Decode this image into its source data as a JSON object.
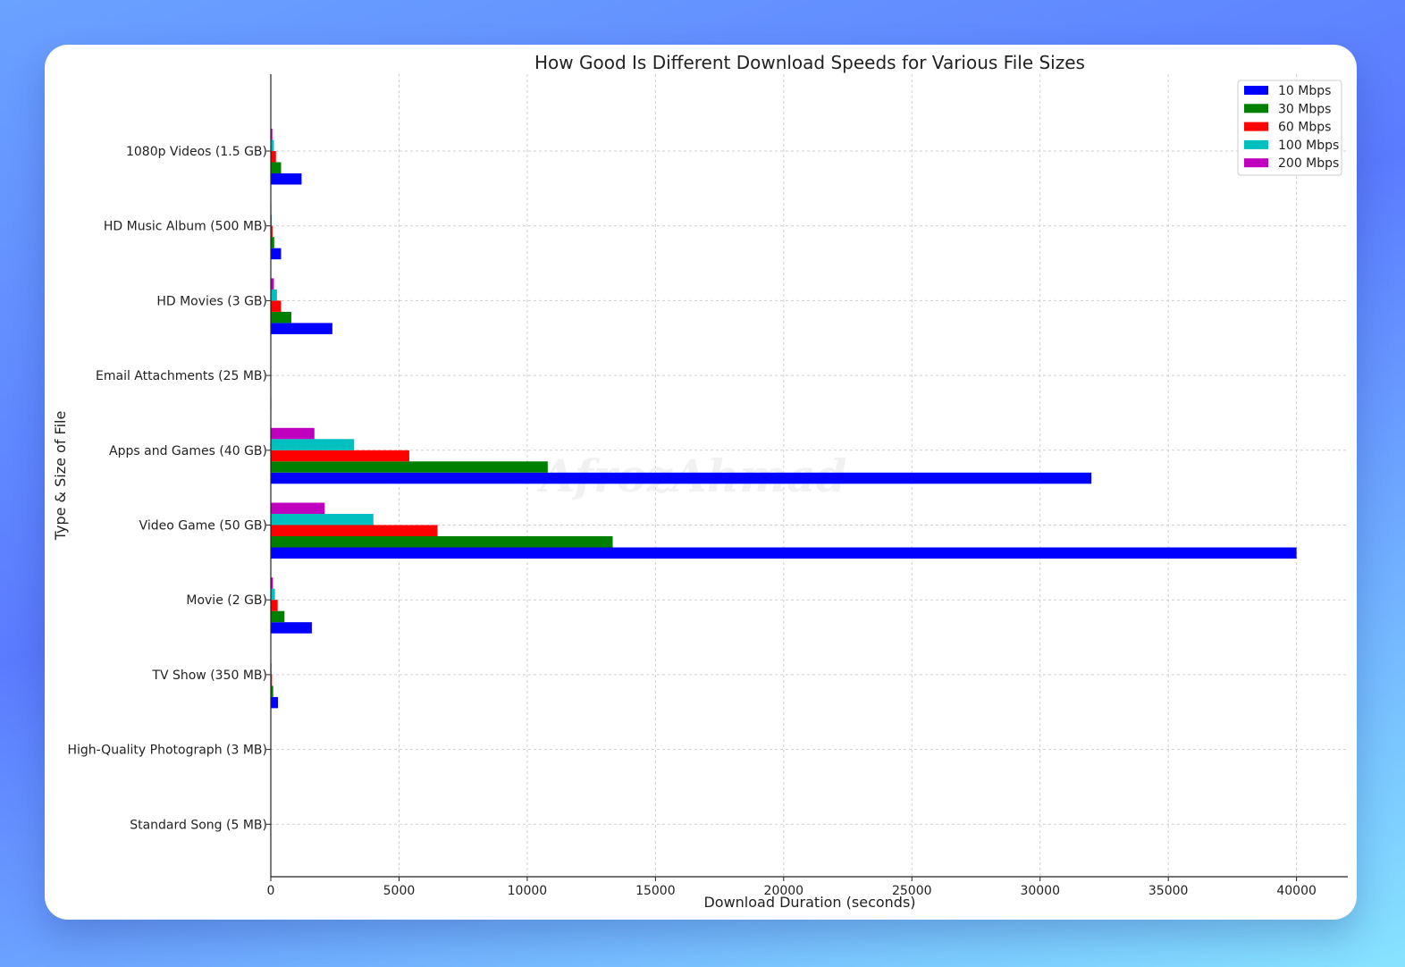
{
  "chart_data": {
    "type": "bar",
    "orientation": "horizontal",
    "title": "How Good Is Different Download Speeds for Various File Sizes",
    "xlabel": "Download Duration (seconds)",
    "ylabel": "Type & Size of File",
    "xlim": [
      0,
      42000
    ],
    "x_ticks": [
      0,
      5000,
      10000,
      15000,
      20000,
      25000,
      30000,
      35000,
      40000
    ],
    "grid": true,
    "legend_position": "top-right",
    "categories": [
      "1080p Videos (1.5 GB)",
      "HD Music Album (500 MB)",
      "HD Movies (3 GB)",
      "Email Attachments (25 MB)",
      "Apps and Games (40 GB)",
      "Video Game (50 GB)",
      "Movie (2 GB)",
      "TV Show (350 MB)",
      "High-Quality Photograph (3 MB)",
      "Standard Song (5 MB)"
    ],
    "series": [
      {
        "name": "10 Mbps",
        "color": "#0000ff",
        "values": [
          1200,
          400,
          2400,
          20,
          32000,
          40000,
          1600,
          280,
          2.4,
          4
        ]
      },
      {
        "name": "30 Mbps",
        "color": "#008000",
        "values": [
          400,
          133,
          800,
          6.7,
          10800,
          13333,
          533,
          93,
          0.8,
          1.3
        ]
      },
      {
        "name": "60 Mbps",
        "color": "#ff0000",
        "values": [
          200,
          67,
          400,
          3.3,
          5400,
          6500,
          267,
          47,
          0.4,
          0.7
        ]
      },
      {
        "name": "100 Mbps",
        "color": "#00bfbf",
        "values": [
          120,
          40,
          240,
          2,
          3250,
          4000,
          160,
          28,
          0.24,
          0.4
        ]
      },
      {
        "name": "200 Mbps",
        "color": "#bf00bf",
        "values": [
          60,
          20,
          120,
          1,
          1700,
          2100,
          80,
          14,
          0.12,
          0.2
        ]
      }
    ]
  },
  "watermark": "AfrozAhmad"
}
